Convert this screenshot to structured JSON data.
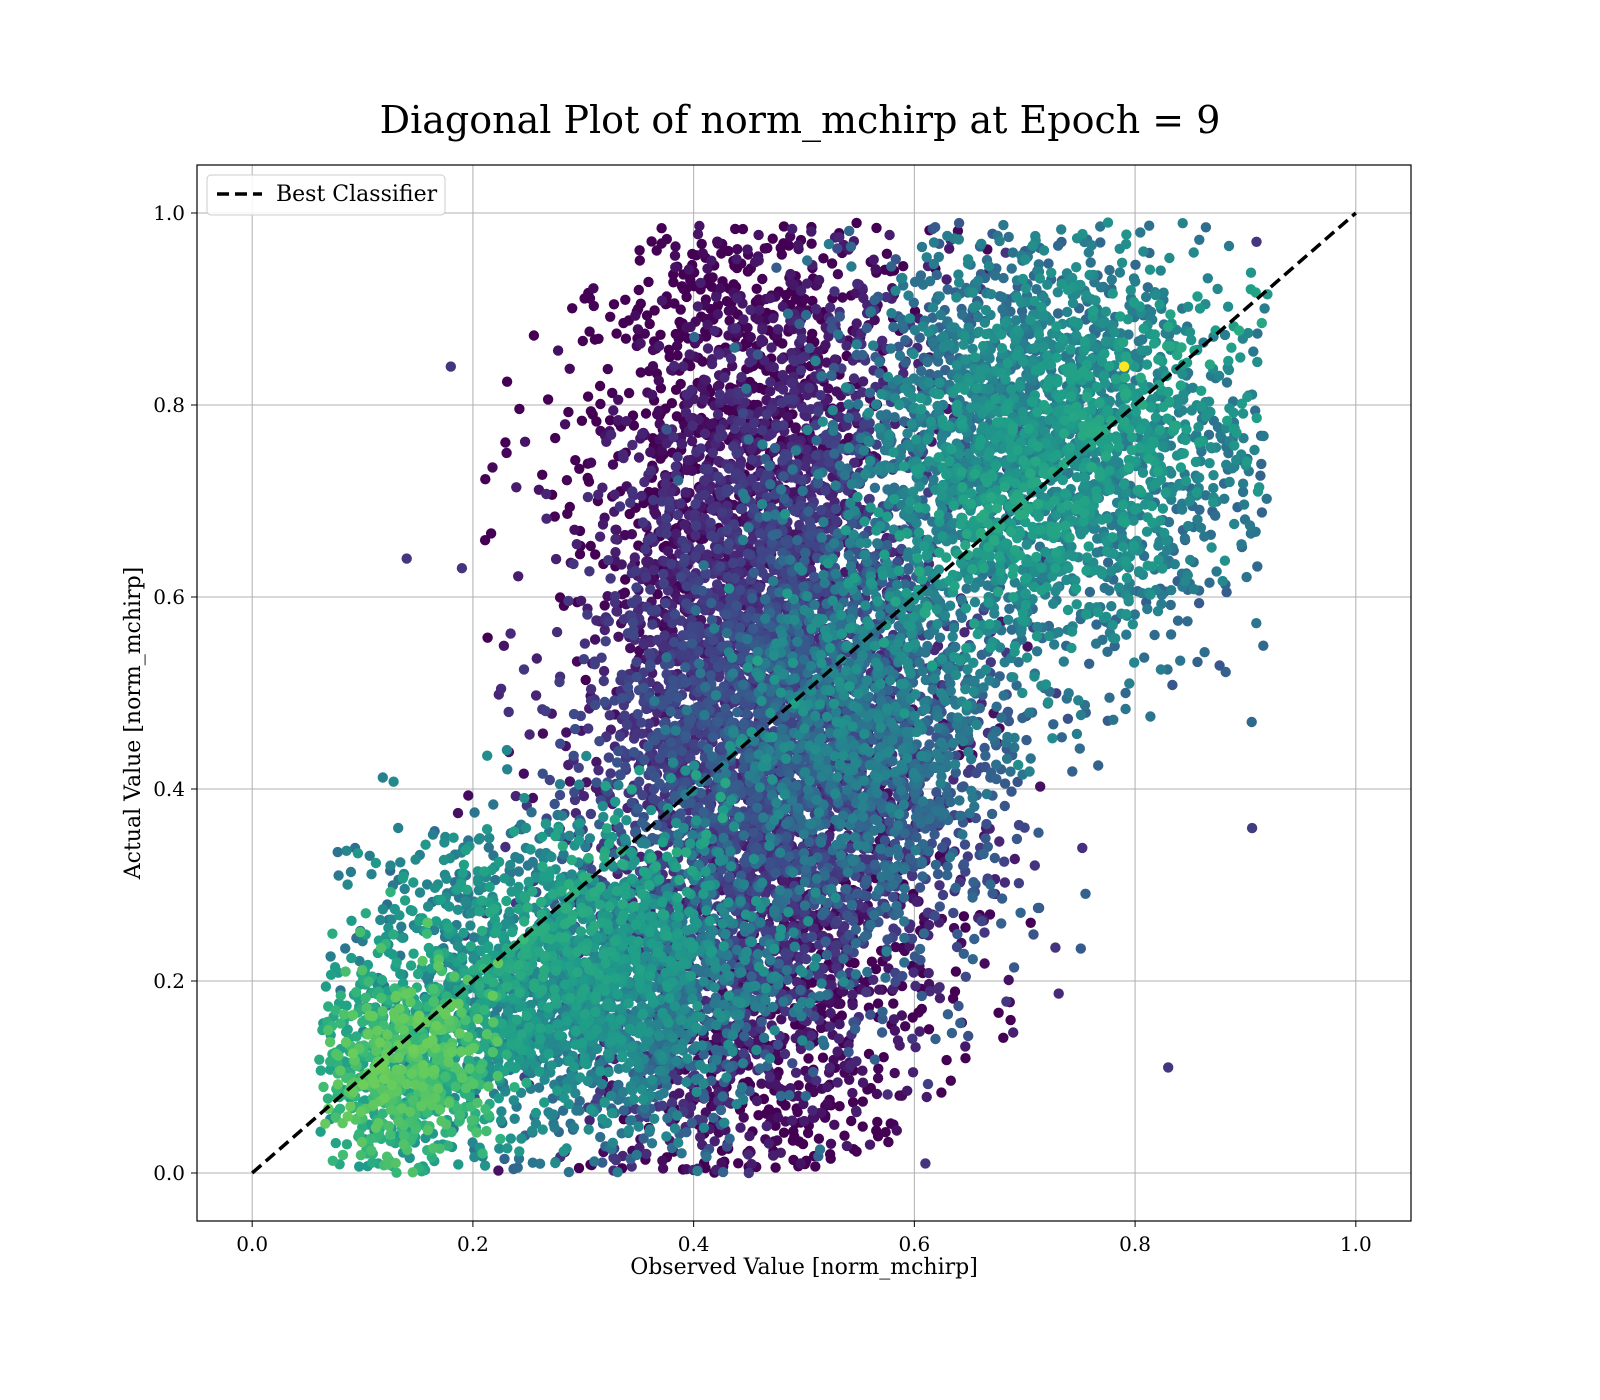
{
  "chart_data": {
    "type": "scatter",
    "title": "Diagonal Plot of norm_mchirp at Epoch = 9",
    "xlabel": "Observed Value [norm_mchirp]",
    "ylabel": "Actual Value [norm_mchirp]",
    "xlim": [
      -0.05,
      1.05
    ],
    "ylim": [
      -0.05,
      1.05
    ],
    "xticks": [
      "0.0",
      "0.2",
      "0.4",
      "0.6",
      "0.8",
      "1.0"
    ],
    "yticks": [
      "0.0",
      "0.2",
      "0.4",
      "0.6",
      "0.8",
      "1.0"
    ],
    "grid": true,
    "legend": {
      "placement": "top-left",
      "entries": [
        "Best Classifier"
      ]
    },
    "colormap": "viridis",
    "reference_line": {
      "name": "Best Classifier",
      "x": [
        0.0,
        1.0
      ],
      "y": [
        0.0,
        1.0
      ],
      "style": "dashed",
      "color": "#000000"
    },
    "density_regions": [
      {
        "x_center": 0.46,
        "y_center": 0.5,
        "x_spread": 0.08,
        "y_spread": 0.27,
        "color_level": 0.08,
        "weight": 0.45
      },
      {
        "x_center": 0.3,
        "y_center": 0.2,
        "x_spread": 0.09,
        "y_spread": 0.08,
        "color_level": 0.4,
        "weight": 0.18
      },
      {
        "x_center": 0.72,
        "y_center": 0.76,
        "x_spread": 0.09,
        "y_spread": 0.11,
        "color_level": 0.38,
        "weight": 0.2
      },
      {
        "x_center": 0.14,
        "y_center": 0.11,
        "x_spread": 0.04,
        "y_spread": 0.05,
        "color_level": 0.55,
        "weight": 0.06
      },
      {
        "x_center": 0.56,
        "y_center": 0.45,
        "x_spread": 0.07,
        "y_spread": 0.12,
        "color_level": 0.3,
        "weight": 0.11
      }
    ],
    "sample_points": [
      {
        "x": 0.18,
        "y": 0.84
      },
      {
        "x": 0.14,
        "y": 0.64
      },
      {
        "x": 0.19,
        "y": 0.63
      },
      {
        "x": 0.83,
        "y": 0.11
      },
      {
        "x": 0.79,
        "y": 0.84,
        "color_level": 1.0
      },
      {
        "x": 0.91,
        "y": 0.97
      },
      {
        "x": 0.45,
        "y": 0.0
      },
      {
        "x": 0.61,
        "y": 0.01
      }
    ],
    "colors": {
      "axes": "#000000",
      "grid": "#b0b0b0",
      "line": "#000000"
    }
  }
}
